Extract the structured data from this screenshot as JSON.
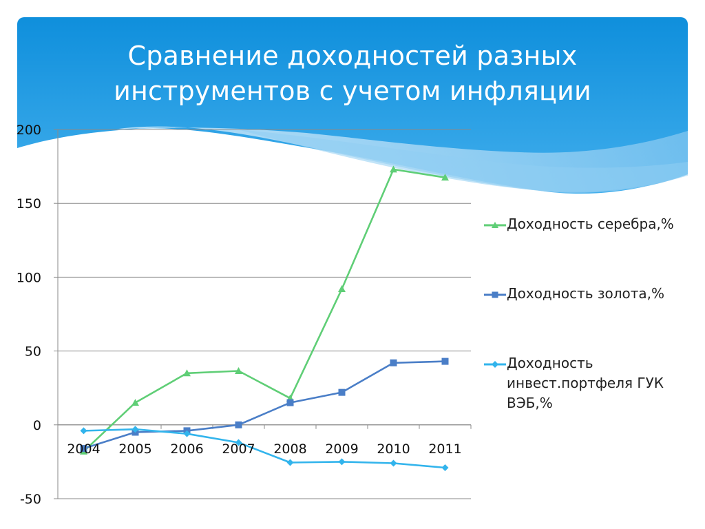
{
  "slide": {
    "title": "Сравнение доходностей разных\nинструментов с учетом инфляции",
    "theme_colors": {
      "header_top": "#0f8fdc",
      "header_bottom": "#3aa8ea",
      "wave_light": "#bfe1f7"
    }
  },
  "chart_data": {
    "type": "line",
    "title": "",
    "xlabel": "",
    "ylabel": "",
    "categories": [
      "2004",
      "2005",
      "2006",
      "2007",
      "2008",
      "2009",
      "2010",
      "2011"
    ],
    "ylim": [
      -50,
      200
    ],
    "yticks": [
      "200",
      "150",
      "100",
      "50",
      "0",
      "-50"
    ],
    "ytick_values": [
      200,
      150,
      100,
      50,
      0,
      -50
    ],
    "grid": true,
    "legend_position": "right",
    "series": [
      {
        "name": "Доходность серебра,%",
        "color": "#5fce76",
        "marker": "triangle",
        "values": [
          -18,
          15,
          35,
          36.5,
          18,
          92,
          173,
          167.5
        ]
      },
      {
        "name": "Доходность золота,%",
        "color": "#4a7ec7",
        "marker": "square",
        "values": [
          -16,
          -5,
          -4,
          0,
          15,
          22,
          42,
          43
        ]
      },
      {
        "name": "Доходность\nинвест.портфеля ГУК\nВЭБ,%",
        "color": "#32b4ec",
        "marker": "diamond",
        "values": [
          -4,
          -3,
          -6,
          -12,
          -25.5,
          -25,
          -26,
          -29
        ]
      }
    ]
  }
}
